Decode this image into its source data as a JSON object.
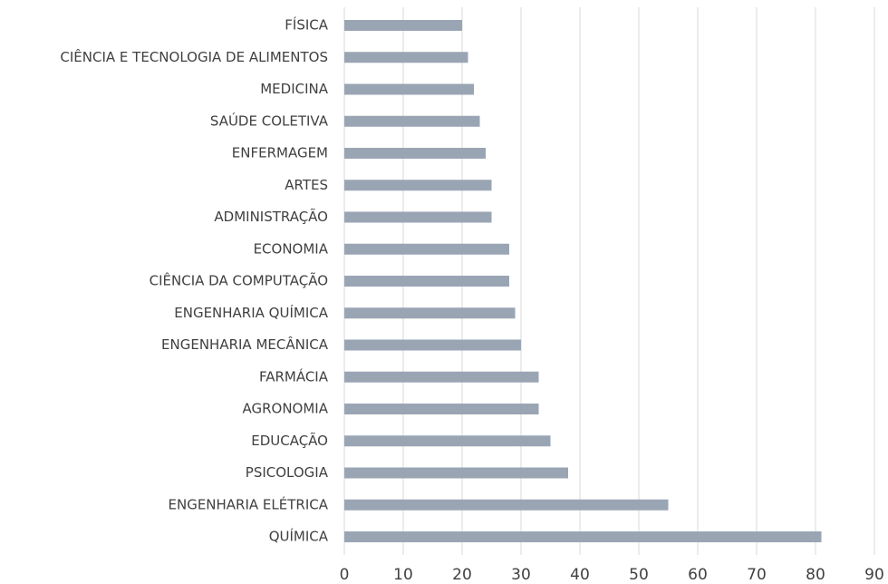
{
  "chart_data": {
    "type": "bar",
    "orientation": "horizontal",
    "categories": [
      "FÍSICA",
      "CIÊNCIA E TECNOLOGIA DE ALIMENTOS",
      "MEDICINA",
      "SAÚDE COLETIVA",
      "ENFERMAGEM",
      "ARTES",
      "ADMINISTRAÇÃO",
      "ECONOMIA",
      "CIÊNCIA DA COMPUTAÇÃO",
      "ENGENHARIA QUÍMICA",
      "ENGENHARIA MECÂNICA",
      "FARMÁCIA",
      "AGRONOMIA",
      "EDUCAÇÃO",
      "PSICOLOGIA",
      "ENGENHARIA ELÉTRICA",
      "QUÍMICA"
    ],
    "values": [
      20,
      21,
      22,
      23,
      24,
      25,
      25,
      28,
      28,
      29,
      30,
      33,
      33,
      35,
      38,
      55,
      81
    ],
    "color": "#9aa5b4",
    "xlim": [
      0,
      90
    ],
    "xticks": [
      0,
      10,
      20,
      30,
      40,
      50,
      60,
      70,
      80,
      90
    ],
    "grid": true
  }
}
